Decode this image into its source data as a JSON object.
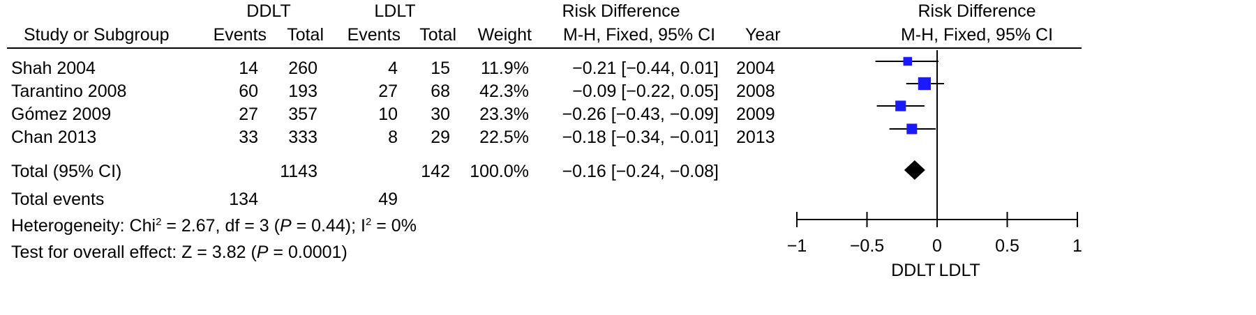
{
  "headers": {
    "group_ddlt": "DDLT",
    "group_ldlt": "LDLT",
    "rd_group": "Risk Difference",
    "study": "Study or Subgroup",
    "events": "Events",
    "total": "Total",
    "weight": "Weight",
    "method": "M-H, Fixed, 95% CI",
    "year": "Year",
    "plot_title": "Risk Difference",
    "plot_method": "M-H, Fixed, 95% CI"
  },
  "studies": [
    {
      "name": "Shah 2004",
      "ddlt_events": "14",
      "ddlt_total": "260",
      "ldlt_events": "4",
      "ldlt_total": "15",
      "weight": "11.9%",
      "ci_text": "−0.21 [−0.44, 0.01]",
      "year": "2004"
    },
    {
      "name": "Tarantino 2008",
      "ddlt_events": "60",
      "ddlt_total": "193",
      "ldlt_events": "27",
      "ldlt_total": "68",
      "weight": "42.3%",
      "ci_text": "−0.09 [−0.22, 0.05]",
      "year": "2008"
    },
    {
      "name": "Gómez 2009",
      "ddlt_events": "27",
      "ddlt_total": "357",
      "ldlt_events": "10",
      "ldlt_total": "30",
      "weight": "23.3%",
      "ci_text": "−0.26 [−0.43, −0.09]",
      "year": "2009"
    },
    {
      "name": "Chan 2013",
      "ddlt_events": "33",
      "ddlt_total": "333",
      "ldlt_events": "8",
      "ldlt_total": "29",
      "weight": "22.5%",
      "ci_text": "−0.18 [−0.34, −0.01]",
      "year": "2013"
    }
  ],
  "total_row": {
    "label": "Total (95% CI)",
    "ddlt_total": "1143",
    "ldlt_total": "142",
    "weight": "100.0%",
    "ci_text": "−0.16 [−0.24, −0.08]"
  },
  "events_row": {
    "label": "Total events",
    "ddlt_events": "134",
    "ldlt_events": "49"
  },
  "heterogeneity": {
    "prefix": "Heterogeneity: Chi",
    "sup1": "2",
    "mid1": " = 2.67, df = 3 (",
    "p": "P",
    "mid2": " = 0.44); I",
    "sup2": "2",
    "suffix": " = 0%"
  },
  "overall": {
    "prefix": "Test for overall effect: Z = 3.82 (",
    "p": "P",
    "suffix": " = 0.0001)"
  },
  "axis_labels": {
    "left": "DDLT",
    "right": "LDLT"
  },
  "colors": {
    "marker": "#1a1aff",
    "line": "#000000",
    "diamond": "#000000"
  },
  "chart_data": {
    "type": "forest",
    "title": "Risk Difference",
    "subtitle": "M-H, Fixed, 95% CI",
    "xlim": [
      -1,
      1
    ],
    "ticks": [
      -1,
      -0.5,
      0,
      0.5,
      1
    ],
    "tick_labels": [
      "−1",
      "−0.5",
      "0",
      "0.5",
      "1"
    ],
    "xlabel_left": "DDLT",
    "xlabel_right": "LDLT",
    "studies": [
      {
        "label": "Shah 2004",
        "estimate": -0.21,
        "lower": -0.44,
        "upper": 0.01,
        "weight": 11.9
      },
      {
        "label": "Tarantino 2008",
        "estimate": -0.09,
        "lower": -0.22,
        "upper": 0.05,
        "weight": 42.3
      },
      {
        "label": "Gómez 2009",
        "estimate": -0.26,
        "lower": -0.43,
        "upper": -0.09,
        "weight": 23.3
      },
      {
        "label": "Chan 2013",
        "estimate": -0.18,
        "lower": -0.34,
        "upper": -0.01,
        "weight": 22.5
      }
    ],
    "pooled": {
      "label": "Total (95% CI)",
      "estimate": -0.16,
      "lower": -0.24,
      "upper": -0.08
    }
  }
}
